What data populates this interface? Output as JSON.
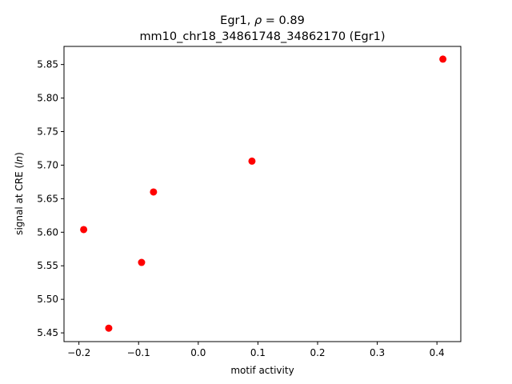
{
  "chart_data": {
    "type": "scatter",
    "title_line1_prefix": "Egr1, ",
    "title_line1_rho": "ρ",
    "title_line1_suffix": " = 0.89",
    "title_line2": "mm10_chr18_34861748_34862170 (Egr1)",
    "xlabel": "motif activity",
    "ylabel_prefix": "signal at CRE (",
    "ylabel_italic": "ln",
    "ylabel_suffix": ")",
    "xlim": [
      -0.225,
      0.44
    ],
    "ylim": [
      5.437,
      5.877
    ],
    "xticks": [
      -0.2,
      -0.1,
      0.0,
      0.1,
      0.2,
      0.3,
      0.4
    ],
    "xtick_labels": [
      "−0.2",
      "−0.1",
      "0.0",
      "0.1",
      "0.2",
      "0.3",
      "0.4"
    ],
    "yticks": [
      5.45,
      5.5,
      5.55,
      5.6,
      5.65,
      5.7,
      5.75,
      5.8,
      5.85
    ],
    "ytick_labels": [
      "5.45",
      "5.50",
      "5.55",
      "5.60",
      "5.65",
      "5.70",
      "5.75",
      "5.80",
      "5.85"
    ],
    "marker_color": "#ff0000",
    "grid": false,
    "points": [
      {
        "x": -0.192,
        "y": 5.604
      },
      {
        "x": -0.15,
        "y": 5.457
      },
      {
        "x": -0.095,
        "y": 5.555
      },
      {
        "x": -0.075,
        "y": 5.66
      },
      {
        "x": 0.09,
        "y": 5.706
      },
      {
        "x": 0.41,
        "y": 5.858
      }
    ]
  }
}
